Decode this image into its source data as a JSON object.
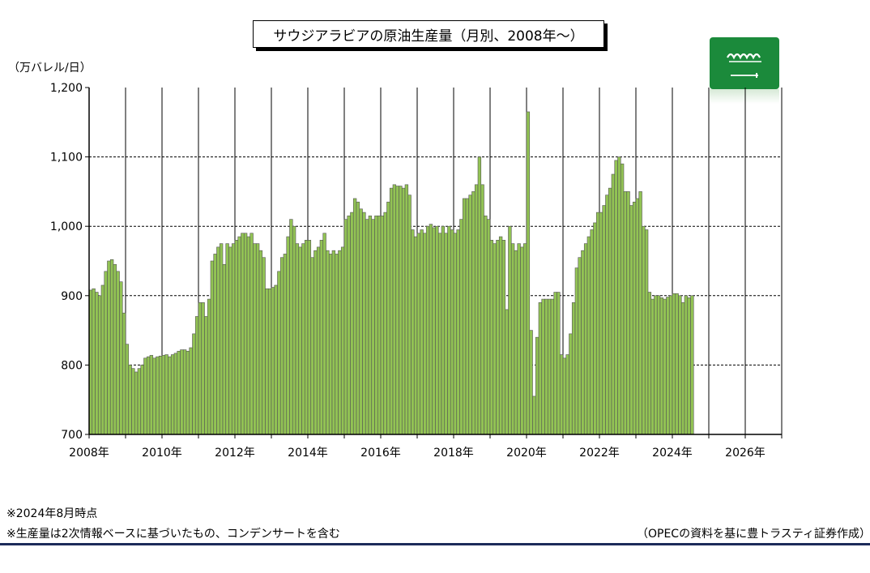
{
  "title": "サウジアラビアの原油生産量（月別、2008年～）",
  "unit_label": "（万バレル/日）",
  "notes": {
    "as_of": "※2024年8月時点",
    "definition": "※生産量は2次情報ベースに基づいたもの、コンデンサートを含む",
    "source": "（OPECの資料を基に豊トラスティ証券作成）"
  },
  "flag_icon": "saudi-arabia-flag-icon",
  "colors": {
    "bar_fill": "#92c354",
    "bar_edge": "#555555",
    "flag_green": "#1b8a3b"
  },
  "chart_data": {
    "type": "bar",
    "title": "サウジアラビアの原油生産量（月別、2008年～）",
    "ylabel": "（万バレル/日）",
    "ylim": [
      700,
      1200
    ],
    "yticks": [
      700,
      800,
      900,
      1000,
      1100,
      1200
    ],
    "ytick_labels": [
      "700",
      "800",
      "900",
      "1,000",
      "1,100",
      "1,200"
    ],
    "xticks": [
      "2008年",
      "2010年",
      "2012年",
      "2014年",
      "2016年",
      "2018年",
      "2020年",
      "2022年",
      "2024年",
      "2026年"
    ],
    "x_range": [
      "2008-01",
      "2026-12"
    ],
    "grid": "horizontal dashed at 800, 900, 1000, 1100; vertical solid at each year start",
    "series": [
      {
        "start": "2008-01",
        "values": [
          908,
          910,
          905,
          900,
          915,
          935,
          950,
          952,
          945,
          935,
          920,
          875,
          830,
          800,
          795,
          790,
          795,
          800,
          810,
          812,
          814,
          810,
          812,
          813,
          814,
          815,
          812,
          815,
          817,
          820,
          822,
          822,
          820,
          825,
          845,
          870,
          890,
          890,
          870,
          895,
          950,
          960,
          970,
          975,
          945,
          975,
          970,
          975,
          980,
          985,
          990,
          990,
          985,
          990,
          975,
          975,
          965,
          955,
          910,
          910,
          912,
          915,
          935,
          955,
          960,
          985,
          1010,
          1000,
          975,
          970,
          975,
          980,
          980,
          955,
          965,
          970,
          980,
          990,
          965,
          960,
          965,
          960,
          965,
          970,
          1010,
          1015,
          1020,
          1040,
          1035,
          1025,
          1020,
          1010,
          1015,
          1010,
          1015,
          1015,
          1015,
          1020,
          1035,
          1055,
          1060,
          1058,
          1058,
          1055,
          1060,
          1045,
          995,
          985,
          990,
          995,
          990,
          1000,
          1003,
          998,
          1000,
          990,
          1000,
          990,
          1000,
          995,
          990,
          995,
          1010,
          1040,
          1040,
          1045,
          1050,
          1060,
          1100,
          1060,
          1015,
          1010,
          980,
          975,
          980,
          985,
          980,
          880,
          1000,
          975,
          965,
          975,
          970,
          975,
          1165,
          850,
          755,
          840,
          890,
          895,
          895,
          895,
          895,
          905,
          905,
          815,
          810,
          815,
          845,
          890,
          940,
          955,
          965,
          975,
          985,
          995,
          1005,
          1020,
          1020,
          1030,
          1045,
          1055,
          1075,
          1095,
          1100,
          1090,
          1050,
          1050,
          1030,
          1035,
          1040,
          1050,
          1000,
          995,
          905,
          895,
          900,
          900,
          897,
          895,
          898,
          900,
          903,
          903,
          900,
          890,
          900,
          897,
          900
        ]
      }
    ],
    "legend": "none"
  }
}
